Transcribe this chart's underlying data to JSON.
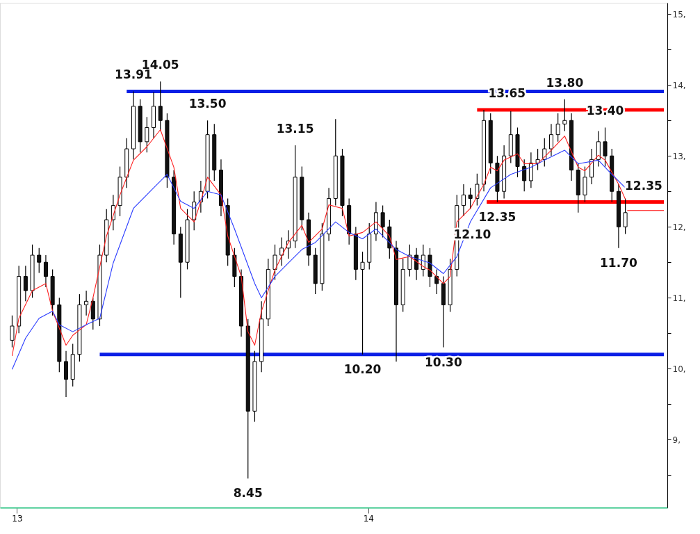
{
  "chart_data": {
    "type": "candlestick",
    "x": [
      "2012-12-27",
      "2013-01-03",
      "2013-01-10",
      "2013-01-17",
      "2013-01-24",
      "2013-01-31",
      "2013-02-07",
      "2013-02-14",
      "2013-02-21",
      "2013-02-28",
      "2013-03-07",
      "2013-03-14",
      "2013-03-21",
      "2013-03-28",
      "2013-04-04",
      "2013-04-11",
      "2013-04-18",
      "2013-04-25",
      "2013-05-02",
      "2013-05-09",
      "2013-05-16",
      "2013-05-23",
      "2013-05-30",
      "2013-06-06",
      "2013-06-13",
      "2013-06-20",
      "2013-06-27",
      "2013-07-04",
      "2013-07-11",
      "2013-07-18",
      "2013-07-25",
      "2013-08-01",
      "2013-08-08",
      "2013-08-15",
      "2013-08-22",
      "2013-08-29",
      "2013-09-05",
      "2013-09-12",
      "2013-09-19",
      "2013-09-26",
      "2013-10-03",
      "2013-10-10",
      "2013-10-17",
      "2013-10-24",
      "2013-10-31",
      "2013-11-07",
      "2013-11-14",
      "2013-11-21",
      "2013-11-28",
      "2013-12-05",
      "2013-12-12",
      "2013-12-19",
      "2013-12-26",
      "2014-01-02",
      "2014-01-09",
      "2014-01-16",
      "2014-01-23",
      "2014-01-30",
      "2014-02-06",
      "2014-02-13",
      "2014-02-20",
      "2014-02-27",
      "2014-03-06",
      "2014-03-13",
      "2014-03-20",
      "2014-03-27",
      "2014-04-03",
      "2014-04-10",
      "2014-04-17",
      "2014-04-24",
      "2014-05-01",
      "2014-05-08",
      "2014-05-15",
      "2014-05-22",
      "2014-05-29",
      "2014-06-05",
      "2014-06-12",
      "2014-06-19",
      "2014-06-26",
      "2014-07-03",
      "2014-07-10",
      "2014-07-17",
      "2014-07-24",
      "2014-07-31",
      "2014-08-07",
      "2014-08-14",
      "2014-08-21",
      "2014-08-28",
      "2014-09-04",
      "2014-09-11",
      "2014-09-18",
      "2014-09-25"
    ],
    "ohlc": [
      [
        10.4,
        10.75,
        10.3,
        10.6
      ],
      [
        10.6,
        11.45,
        10.5,
        11.3
      ],
      [
        11.3,
        11.45,
        10.95,
        11.1
      ],
      [
        11.1,
        11.75,
        11.0,
        11.6
      ],
      [
        11.6,
        11.7,
        11.35,
        11.5
      ],
      [
        11.5,
        11.6,
        11.15,
        11.3
      ],
      [
        11.3,
        11.4,
        10.75,
        10.9
      ],
      [
        10.9,
        11.0,
        9.95,
        10.1
      ],
      [
        10.1,
        10.25,
        9.6,
        9.85
      ],
      [
        9.85,
        10.35,
        9.75,
        10.2
      ],
      [
        10.2,
        11.05,
        10.1,
        10.9
      ],
      [
        10.9,
        11.1,
        10.75,
        10.95
      ],
      [
        10.95,
        11.0,
        10.55,
        10.7
      ],
      [
        10.7,
        11.75,
        10.6,
        11.6
      ],
      [
        11.6,
        12.25,
        11.5,
        12.1
      ],
      [
        12.1,
        12.45,
        11.95,
        12.3
      ],
      [
        12.3,
        12.85,
        12.15,
        12.7
      ],
      [
        12.7,
        13.25,
        12.55,
        13.1
      ],
      [
        13.1,
        13.91,
        12.95,
        13.7
      ],
      [
        13.7,
        13.8,
        13.05,
        13.2
      ],
      [
        13.2,
        13.55,
        13.05,
        13.4
      ],
      [
        13.4,
        13.9,
        13.25,
        13.7
      ],
      [
        13.7,
        14.05,
        13.35,
        13.5
      ],
      [
        13.5,
        13.6,
        12.55,
        12.7
      ],
      [
        12.7,
        12.8,
        11.75,
        11.9
      ],
      [
        11.9,
        12.0,
        11.0,
        11.5
      ],
      [
        11.5,
        12.25,
        11.4,
        12.1
      ],
      [
        12.1,
        12.5,
        11.95,
        12.35
      ],
      [
        12.35,
        12.65,
        12.2,
        12.5
      ],
      [
        12.5,
        13.5,
        12.4,
        13.3
      ],
      [
        13.3,
        13.45,
        12.65,
        12.8
      ],
      [
        12.8,
        12.95,
        12.15,
        12.3
      ],
      [
        12.3,
        12.4,
        11.45,
        11.6
      ],
      [
        11.6,
        11.7,
        11.15,
        11.3
      ],
      [
        11.3,
        11.4,
        10.45,
        10.6
      ],
      [
        10.6,
        10.7,
        8.45,
        9.4
      ],
      [
        9.4,
        10.25,
        9.25,
        10.1
      ],
      [
        10.1,
        10.95,
        9.95,
        10.7
      ],
      [
        10.7,
        11.55,
        10.6,
        11.4
      ],
      [
        11.4,
        11.75,
        11.25,
        11.6
      ],
      [
        11.6,
        11.85,
        11.45,
        11.7
      ],
      [
        11.7,
        11.95,
        11.55,
        11.8
      ],
      [
        11.8,
        13.15,
        11.7,
        12.7
      ],
      [
        12.7,
        12.85,
        11.95,
        12.1
      ],
      [
        12.1,
        12.2,
        11.45,
        11.6
      ],
      [
        11.6,
        11.7,
        11.05,
        11.2
      ],
      [
        11.2,
        12.05,
        11.1,
        11.9
      ],
      [
        11.9,
        12.55,
        11.8,
        12.4
      ],
      [
        12.4,
        13.52,
        12.3,
        13.0
      ],
      [
        13.0,
        13.1,
        12.15,
        12.3
      ],
      [
        12.3,
        12.4,
        11.75,
        11.9
      ],
      [
        11.9,
        12.0,
        11.25,
        11.4
      ],
      [
        11.4,
        11.65,
        10.2,
        11.5
      ],
      [
        11.5,
        12.05,
        11.4,
        11.9
      ],
      [
        11.9,
        12.35,
        11.8,
        12.2
      ],
      [
        12.2,
        12.3,
        11.85,
        12.0
      ],
      [
        12.0,
        12.1,
        11.55,
        11.7
      ],
      [
        11.7,
        11.8,
        10.1,
        10.9
      ],
      [
        10.9,
        11.55,
        10.8,
        11.4
      ],
      [
        11.4,
        11.75,
        11.3,
        11.6
      ],
      [
        11.6,
        11.7,
        11.25,
        11.4
      ],
      [
        11.4,
        11.75,
        11.3,
        11.6
      ],
      [
        11.6,
        11.7,
        11.15,
        11.3
      ],
      [
        11.3,
        11.4,
        11.05,
        11.2
      ],
      [
        11.2,
        11.3,
        10.3,
        10.9
      ],
      [
        10.9,
        11.55,
        10.8,
        11.4
      ],
      [
        11.4,
        12.45,
        11.3,
        12.3
      ],
      [
        12.3,
        12.6,
        12.15,
        12.45
      ],
      [
        12.45,
        12.55,
        12.25,
        12.4
      ],
      [
        12.4,
        12.75,
        12.3,
        12.6
      ],
      [
        12.6,
        13.65,
        12.5,
        13.5
      ],
      [
        13.5,
        13.6,
        12.75,
        12.9
      ],
      [
        12.9,
        13.0,
        12.35,
        12.5
      ],
      [
        12.5,
        13.15,
        12.4,
        13.0
      ],
      [
        13.0,
        13.63,
        12.9,
        13.3
      ],
      [
        13.3,
        13.4,
        12.7,
        12.85
      ],
      [
        12.85,
        12.95,
        12.5,
        12.65
      ],
      [
        12.65,
        13.05,
        12.55,
        12.9
      ],
      [
        12.9,
        13.1,
        12.8,
        12.95
      ],
      [
        12.95,
        13.25,
        12.85,
        13.1
      ],
      [
        13.1,
        13.45,
        13.0,
        13.3
      ],
      [
        13.3,
        13.6,
        13.2,
        13.45
      ],
      [
        13.45,
        13.8,
        13.35,
        13.5
      ],
      [
        13.5,
        13.6,
        12.65,
        12.8
      ],
      [
        12.8,
        12.9,
        12.2,
        12.45
      ],
      [
        12.45,
        12.85,
        12.35,
        12.7
      ],
      [
        12.7,
        13.1,
        12.6,
        12.95
      ],
      [
        12.95,
        13.35,
        12.85,
        13.2
      ],
      [
        13.2,
        13.4,
        12.85,
        13.0
      ],
      [
        13.0,
        13.1,
        12.35,
        12.5
      ],
      [
        12.5,
        12.6,
        11.7,
        12.0
      ],
      [
        12.0,
        12.4,
        11.9,
        12.2
      ]
    ],
    "series": [
      {
        "type": "line",
        "color": "#ff2020",
        "x": [
          "2012-12-27",
          "2013-01-03",
          "2013-01-17",
          "2013-01-31",
          "2013-02-07",
          "2013-02-21",
          "2013-02-28",
          "2013-03-14",
          "2013-03-21",
          "2013-04-04",
          "2013-04-18",
          "2013-05-02",
          "2013-05-16",
          "2013-05-30",
          "2013-06-13",
          "2013-06-20",
          "2013-07-04",
          "2013-07-11",
          "2013-07-18",
          "2013-08-01",
          "2013-08-08",
          "2013-08-22",
          "2013-08-29",
          "2013-09-05",
          "2013-09-12",
          "2013-09-26",
          "2013-10-10",
          "2013-10-24",
          "2013-10-31",
          "2013-11-14",
          "2013-11-21",
          "2013-12-05",
          "2013-12-12",
          "2013-12-26",
          "2014-01-09",
          "2014-01-23",
          "2014-01-30",
          "2014-02-13",
          "2014-02-27",
          "2014-03-06",
          "2014-03-20",
          "2014-03-27",
          "2014-04-03",
          "2014-04-17",
          "2014-05-01",
          "2014-05-08",
          "2014-05-15",
          "2014-05-22",
          "2014-06-05",
          "2014-06-12",
          "2014-06-26",
          "2014-07-10",
          "2014-07-24",
          "2014-08-07",
          "2014-08-14",
          "2014-08-28",
          "2014-09-04",
          "2014-09-18",
          "2014-09-25"
        ],
        "values": [
          10.18,
          10.71,
          11.1,
          11.2,
          10.81,
          10.33,
          10.47,
          10.62,
          11.0,
          11.87,
          12.45,
          12.94,
          13.13,
          13.37,
          12.84,
          12.26,
          12.07,
          12.36,
          12.7,
          12.45,
          11.87,
          11.3,
          10.52,
          10.33,
          10.81,
          11.39,
          11.78,
          12.02,
          11.78,
          11.97,
          12.31,
          12.26,
          11.87,
          11.92,
          12.07,
          11.87,
          11.54,
          11.58,
          11.44,
          11.39,
          11.2,
          11.3,
          12.07,
          12.26,
          12.6,
          12.84,
          12.79,
          12.94,
          13.03,
          12.89,
          12.89,
          13.08,
          13.28,
          12.84,
          12.79,
          13.01,
          12.94,
          12.6,
          12.39
        ]
      },
      {
        "type": "line",
        "color": "#2a3cff",
        "x": [
          "2012-12-27",
          "2013-01-10",
          "2013-01-24",
          "2013-02-07",
          "2013-02-14",
          "2013-02-28",
          "2013-03-14",
          "2013-03-28",
          "2013-04-11",
          "2013-05-02",
          "2013-05-23",
          "2013-06-06",
          "2013-06-20",
          "2013-07-04",
          "2013-07-18",
          "2013-08-01",
          "2013-08-15",
          "2013-09-05",
          "2013-09-12",
          "2013-09-26",
          "2013-10-10",
          "2013-10-24",
          "2013-11-07",
          "2013-11-28",
          "2013-12-12",
          "2013-12-26",
          "2014-01-09",
          "2014-01-30",
          "2014-02-13",
          "2014-03-06",
          "2014-03-20",
          "2014-04-03",
          "2014-04-17",
          "2014-05-08",
          "2014-05-29",
          "2014-06-19",
          "2014-07-03",
          "2014-07-24",
          "2014-08-07",
          "2014-08-28",
          "2014-09-11",
          "2014-09-25"
        ],
        "values": [
          9.99,
          10.43,
          10.71,
          10.81,
          10.62,
          10.52,
          10.62,
          10.71,
          11.49,
          12.26,
          12.55,
          12.74,
          12.36,
          12.26,
          12.5,
          12.45,
          11.97,
          11.2,
          11.0,
          11.3,
          11.49,
          11.68,
          11.78,
          12.07,
          11.92,
          11.83,
          11.97,
          11.68,
          11.58,
          11.49,
          11.34,
          11.58,
          12.07,
          12.55,
          12.74,
          12.84,
          12.94,
          13.08,
          12.89,
          12.94,
          12.74,
          12.55
        ]
      },
      {
        "type": "line",
        "color": "#0a1ee6",
        "x": [
          "2013-04-25",
          "2014-11-04"
        ],
        "values": [
          13.91,
          13.91
        ]
      },
      {
        "type": "line",
        "color": "#0a1ee6",
        "x": [
          "2013-03-28",
          "2014-11-04"
        ],
        "values": [
          10.2,
          10.2
        ]
      },
      {
        "type": "line",
        "color": "#ff0000",
        "x": [
          "2014-04-24",
          "2014-11-04"
        ],
        "values": [
          13.65,
          13.65
        ]
      },
      {
        "type": "line",
        "color": "#ff0000",
        "x": [
          "2014-05-04",
          "2014-11-04"
        ],
        "values": [
          12.35,
          12.35
        ]
      },
      {
        "type": "line",
        "color": "#ff0000",
        "x": [
          "2014-09-27",
          "2014-10-16",
          "2014-11-04"
        ],
        "values": [
          12.23,
          12.23,
          12.23
        ]
      }
    ],
    "annotations": [
      {
        "text": "13.91",
        "x": "2013-05-02",
        "y": 13.91
      },
      {
        "text": "14.05",
        "x": "2013-05-30",
        "y": 14.05
      },
      {
        "text": "13.50",
        "x": "2013-07-18",
        "y": 13.5
      },
      {
        "text": "13.15",
        "x": "2013-10-17",
        "y": 13.15
      },
      {
        "text": "8.45",
        "x": "2013-08-29",
        "y": 8.45
      },
      {
        "text": "10.20",
        "x": "2013-12-26",
        "y": 10.2
      },
      {
        "text": "10.30",
        "x": "2014-03-20",
        "y": 10.3
      },
      {
        "text": "12.10",
        "x": "2014-04-19",
        "y": 12.1
      },
      {
        "text": "12.35",
        "x": "2014-05-15",
        "y": 12.35
      },
      {
        "text": "13.65",
        "x": "2014-05-25",
        "y": 13.65
      },
      {
        "text": "13.80",
        "x": "2014-07-24",
        "y": 13.8
      },
      {
        "text": "13.40",
        "x": "2014-09-04",
        "y": 13.4
      },
      {
        "text": "12.35",
        "x": "2014-10-14",
        "y": 12.35
      },
      {
        "text": "11.70",
        "x": "2014-09-18",
        "y": 11.7
      }
    ],
    "xlim": [
      "2012-12-18",
      "2014-11-04"
    ],
    "xticks": [
      {
        "value": "2013-01-01",
        "label": "13"
      },
      {
        "value": "2014-01-01",
        "label": "14"
      }
    ],
    "ylim": [
      8.04,
      15.16
    ],
    "yticks": [
      {
        "value": 8.5,
        "label": null
      },
      {
        "value": 9,
        "label": "9,"
      },
      {
        "value": 9.5,
        "label": null
      },
      {
        "value": 10,
        "label": "10,"
      },
      {
        "value": 10.5,
        "label": null
      },
      {
        "value": 11,
        "label": "11,"
      },
      {
        "value": 11.5,
        "label": null
      },
      {
        "value": 12,
        "label": "12,"
      },
      {
        "value": 12.5,
        "label": null
      },
      {
        "value": 13,
        "label": "13,"
      },
      {
        "value": 13.5,
        "label": null
      },
      {
        "value": 14,
        "label": "14,"
      },
      {
        "value": 14.5,
        "label": null
      },
      {
        "value": 15,
        "label": "15,"
      }
    ],
    "grid": false
  }
}
